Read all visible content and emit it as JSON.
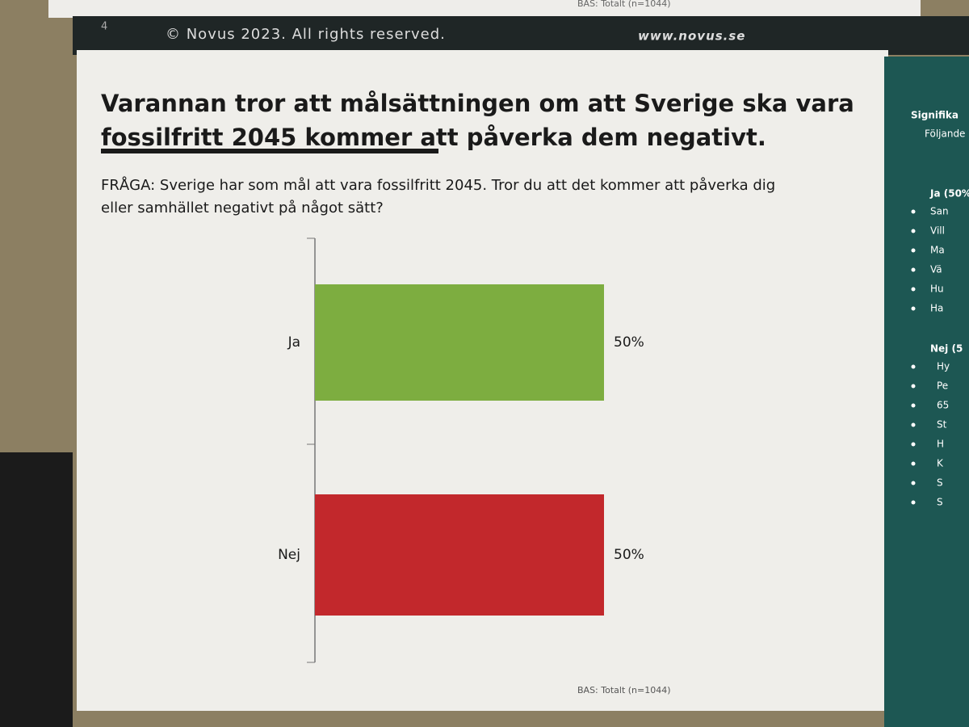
{
  "top_note": "BAS: Totalt (n=1044)",
  "header": {
    "page_number": "4",
    "copyright": "© Novus 2023. All rights reserved.",
    "website": "www.novus.se"
  },
  "chart_data": {
    "type": "bar",
    "orientation": "horizontal",
    "title": "Varannan tror att målsättningen om att Sverige ska vara fossilfritt 2045 kommer att påverka dem negativt.",
    "subtitle": "FRÅGA: Sverige har som mål att vara fossilfritt 2045. Tror du att det kommer att påverka dig eller samhället negativt på något sätt?",
    "categories": [
      "Ja",
      "Nej"
    ],
    "values": [
      50,
      50
    ],
    "value_labels": [
      "50%",
      "50%"
    ],
    "colors": [
      "#7dad40",
      "#c2282c"
    ],
    "xlim": [
      0,
      50
    ],
    "note": "BAS: Totalt (n=1044)"
  },
  "side_panel": {
    "heading": "Signifika",
    "intro": "Följande",
    "groups": [
      {
        "title": "Ja (50%",
        "items": [
          "San",
          "Vill",
          "Ma",
          "Vä",
          "Hu",
          "Ha"
        ]
      },
      {
        "title": "Nej (5",
        "items": [
          "Hy",
          "Pe",
          "65",
          "St",
          "H",
          "K",
          "S",
          "S"
        ]
      }
    ]
  }
}
